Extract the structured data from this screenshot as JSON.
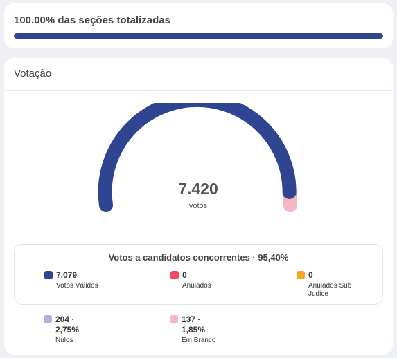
{
  "progress": {
    "title": "100.00% das seções totalizadas",
    "fraction": 1.0,
    "color": "#2f4592"
  },
  "voting": {
    "title": "Votação",
    "total": "7.420",
    "total_unit": "votos",
    "candidates_title": "Votos a candidatos concorrentes · 95,40%",
    "items": [
      {
        "value": "7.079",
        "label": "Votos Válidos",
        "color": "#2f4592",
        "count": 7079
      },
      {
        "value": "0",
        "label": "Anulados",
        "color": "#f14a62",
        "count": 0
      },
      {
        "value": "0",
        "label": "Anulados Sub Judice",
        "label_line1": "Anulados Sub",
        "label_line2": "Judice",
        "color": "#f6a623",
        "count": 0
      },
      {
        "value": "204 ·",
        "percent": "2,75%",
        "label": "Nulos",
        "color": "#b3afd6",
        "count": 204
      },
      {
        "value": "137 ·",
        "percent": "1,85%",
        "label": "Em Branco",
        "color": "#f7b7c2",
        "count": 137
      }
    ]
  }
}
